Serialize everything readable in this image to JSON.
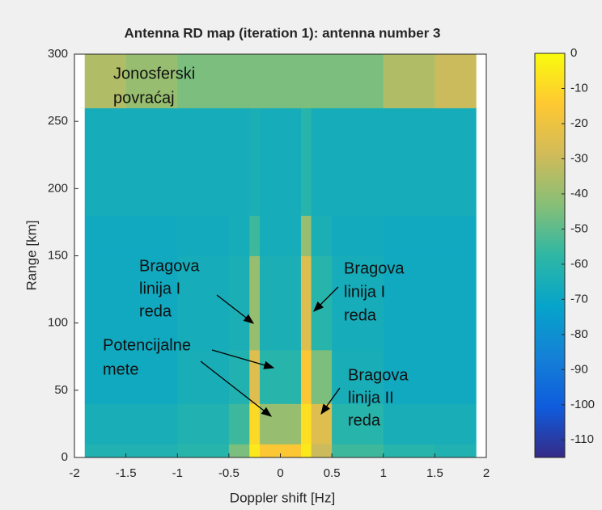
{
  "chart_data": {
    "type": "heatmap",
    "title": "Antenna RD map (iteration 1): antenna number 3",
    "x_label": "Doppler shift [Hz]",
    "y_label": "Range [km]",
    "x_edges": [
      -1.9,
      -1.5,
      -1,
      -0.5,
      -0.3,
      -0.2,
      0.2,
      0.3,
      0.5,
      1,
      1.5,
      1.9
    ],
    "y_edges": [
      0,
      10,
      40,
      80,
      150,
      180,
      260,
      300
    ],
    "values": [
      [
        -62,
        -62,
        -60,
        -45,
        -5,
        -15,
        -5,
        -30,
        -55,
        -60,
        -62
      ],
      [
        -65,
        -65,
        -62,
        -55,
        -10,
        -40,
        -8,
        -25,
        -60,
        -65,
        -65
      ],
      [
        -68,
        -68,
        -65,
        -62,
        -25,
        -60,
        -15,
        -45,
        -65,
        -68,
        -68
      ],
      [
        -68,
        -68,
        -66,
        -64,
        -40,
        -64,
        -25,
        -60,
        -66,
        -68,
        -68
      ],
      [
        -68,
        -68,
        -67,
        -66,
        -55,
        -66,
        -40,
        -64,
        -67,
        -68,
        -68
      ],
      [
        -66,
        -66,
        -66,
        -66,
        -64,
        -66,
        -60,
        -66,
        -66,
        -66,
        -66
      ],
      [
        -35,
        -40,
        -45,
        -45,
        -45,
        -45,
        -45,
        -45,
        -45,
        -35,
        -30
      ]
    ],
    "xlim": [
      -2,
      2
    ],
    "xticks": [
      -2,
      -1.5,
      -1,
      -0.5,
      0,
      0.5,
      1,
      1.5,
      2
    ],
    "ylim": [
      0,
      300
    ],
    "yticks": [
      0,
      50,
      100,
      150,
      200,
      250,
      300
    ],
    "clim": [
      -115,
      0
    ],
    "cticks": [
      0,
      -10,
      -20,
      -30,
      -40,
      -50,
      -60,
      -70,
      -80,
      -90,
      -100,
      -110
    ],
    "colormap": [
      "#352a87",
      "#0f5cdd",
      "#1481d6",
      "#06a4ca",
      "#2eb7a4",
      "#87bf77",
      "#d1bb59",
      "#fec832",
      "#f9fb0e"
    ],
    "annotations": [
      [
        "Jonosferski",
        "povraćaj"
      ],
      [
        "Bragova",
        "linija I",
        "reda"
      ],
      [
        "Bragova",
        "linija I",
        "reda"
      ],
      [
        "Potencijalne",
        "mete"
      ],
      [
        "Bragova",
        "linija II",
        "reda"
      ]
    ]
  }
}
